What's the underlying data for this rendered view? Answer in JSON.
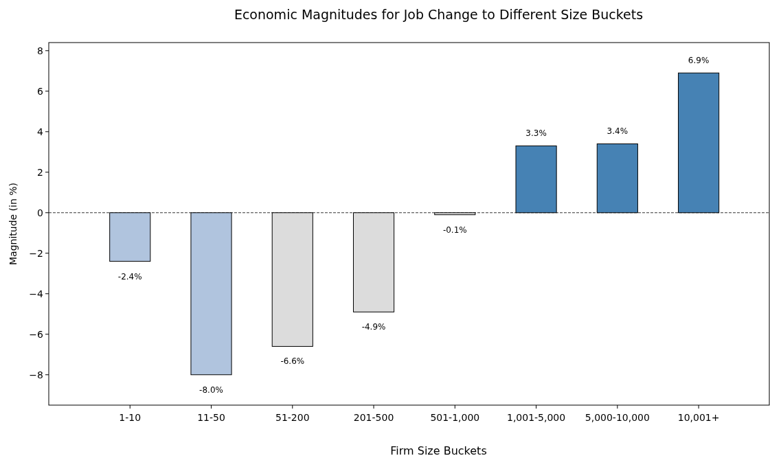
{
  "chart_data": {
    "type": "bar",
    "title": "Economic Magnitudes for Job Change to Different Size Buckets",
    "xlabel": "Firm Size Buckets",
    "ylabel": "Magnitude (in %)",
    "categories": [
      "1-10",
      "11-50",
      "51-200",
      "201-500",
      "501-1,000",
      "1,001-5,000",
      "5,000-10,000",
      "10,001+"
    ],
    "values": [
      -2.4,
      -8.0,
      -6.6,
      -4.9,
      -0.1,
      3.3,
      3.4,
      6.9
    ],
    "colors": [
      "#b0c4de",
      "#b0c4de",
      "#dcdcdc",
      "#dcdcdc",
      "#dcdcdc",
      "#4682b4",
      "#4682b4",
      "#4682b4"
    ],
    "value_labels": [
      "-2.4%",
      "-8.0%",
      "-6.6%",
      "-4.9%",
      "-0.1%",
      "3.3%",
      "3.4%",
      "6.9%"
    ],
    "ylim": [
      -9.5,
      8.4
    ],
    "yticks": [
      {
        "value": -8,
        "label": "−8"
      },
      {
        "value": -6,
        "label": "−6"
      },
      {
        "value": -4,
        "label": "−4"
      },
      {
        "value": -2,
        "label": "−2"
      },
      0,
      2,
      4,
      6,
      8
    ],
    "ref_lines": [
      {
        "axis": "y",
        "value": 0,
        "color": "#000000",
        "line_style": "dashed"
      }
    ],
    "grid": false
  }
}
